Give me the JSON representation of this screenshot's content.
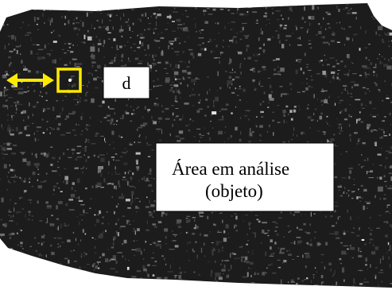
{
  "annotations": {
    "marker_label": "d",
    "region_label": {
      "line1": "Área em análise",
      "line2": "(objeto)"
    }
  }
}
